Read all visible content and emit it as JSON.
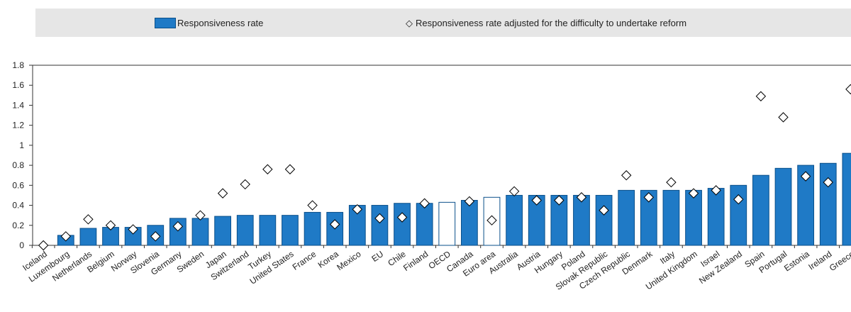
{
  "legend": {
    "bar_label": "Responsiveness rate",
    "diamond_label": "Responsiveness rate adjusted for the difficulty to undertake reform"
  },
  "colors": {
    "bar": "#1f7ac6",
    "bar_border": "#0a4f8a",
    "highlight_bar": "#ffffff",
    "legend_bg": "#e6e6e6",
    "axis": "#333333"
  },
  "chart_data": {
    "type": "bar",
    "ylim": [
      0,
      1.8
    ],
    "yticks": [
      0,
      0.2,
      0.4,
      0.6,
      0.8,
      1,
      1.2,
      1.4,
      1.6,
      1.8
    ],
    "ytick_labels": [
      "0",
      "0.2",
      "0.4",
      "0.6",
      "0.8",
      "1",
      "1.2",
      "1.4",
      "1.6",
      "1.8"
    ],
    "categories": [
      "Iceland",
      "Luxembourg",
      "Netherlands",
      "Belgium",
      "Norway",
      "Slovenia",
      "Germany",
      "Sweden",
      "Japan",
      "Switzerland",
      "Turkey",
      "United States",
      "France",
      "Korea",
      "Mexico",
      "EU",
      "Chile",
      "Finland",
      "OECD",
      "Canada",
      "Euro area",
      "Australia",
      "Austria",
      "Hungary",
      "Poland",
      "Slovak Republic",
      "Czech Republic",
      "Denmark",
      "Italy",
      "United Kingdom",
      "Israel",
      "New Zealand",
      "Spain",
      "Portugal",
      "Estonia",
      "Ireland",
      "Greece"
    ],
    "highlighted": [
      "OECD",
      "Euro area"
    ],
    "series": [
      {
        "name": "Responsiveness rate",
        "kind": "bar",
        "values": [
          0.0,
          0.1,
          0.17,
          0.18,
          0.18,
          0.2,
          0.27,
          0.27,
          0.29,
          0.3,
          0.3,
          0.3,
          0.33,
          0.33,
          0.4,
          0.4,
          0.42,
          0.42,
          0.43,
          0.45,
          0.48,
          0.5,
          0.5,
          0.5,
          0.5,
          0.5,
          0.55,
          0.55,
          0.55,
          0.55,
          0.57,
          0.6,
          0.7,
          0.77,
          0.8,
          0.82,
          0.92
        ]
      },
      {
        "name": "Responsiveness rate adjusted for the difficulty to undertake reform",
        "kind": "diamond",
        "values": [
          0.0,
          0.09,
          0.26,
          0.2,
          0.16,
          0.09,
          0.19,
          0.3,
          0.52,
          0.61,
          0.76,
          0.76,
          0.4,
          0.21,
          0.36,
          0.27,
          0.28,
          0.42,
          null,
          0.44,
          0.25,
          0.54,
          0.45,
          0.45,
          0.48,
          0.35,
          0.7,
          0.48,
          0.63,
          0.52,
          0.55,
          0.46,
          1.49,
          1.28,
          0.69,
          0.63,
          1.56
        ]
      }
    ]
  }
}
